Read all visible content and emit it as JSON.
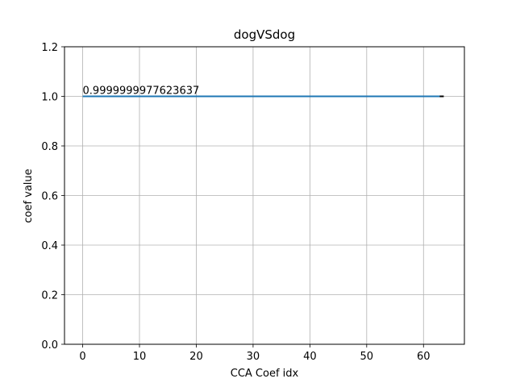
{
  "chart_data": {
    "type": "line",
    "title": "dogVSdog",
    "xlabel": "CCA Coef idx",
    "ylabel": "coef value",
    "xlim": [
      -3.2,
      67.2
    ],
    "ylim": [
      0.0,
      1.2
    ],
    "xticks": [
      0,
      10,
      20,
      30,
      40,
      50,
      60
    ],
    "yticks": [
      0.0,
      0.2,
      0.4,
      0.6,
      0.8,
      1.0,
      1.2
    ],
    "xtick_labels": [
      "0",
      "10",
      "20",
      "30",
      "40",
      "50",
      "60"
    ],
    "ytick_labels": [
      "0.0",
      "0.2",
      "0.4",
      "0.6",
      "0.8",
      "1.0",
      "1.2"
    ],
    "grid": true,
    "series": [
      {
        "color": "#1f77b4",
        "x_start": 0,
        "x_end": 63,
        "y_value": 1.0
      }
    ],
    "marker": {
      "x": 63,
      "y": 1.0,
      "color": "#000000"
    },
    "annotation": {
      "text": "0.9999999977623637",
      "x": 0,
      "y": 1.0
    }
  }
}
